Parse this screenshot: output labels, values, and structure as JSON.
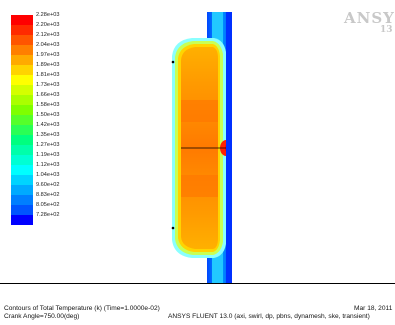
{
  "logo": {
    "brand": "ANSYS",
    "version": "13"
  },
  "legend": {
    "labels": [
      "2.28e+03",
      "2.20e+03",
      "2.12e+03",
      "2.04e+03",
      "1.97e+03",
      "1.89e+03",
      "1.81e+03",
      "1.73e+03",
      "1.66e+03",
      "1.58e+03",
      "1.50e+03",
      "1.42e+03",
      "1.35e+03",
      "1.27e+03",
      "1.19e+03",
      "1.12e+03",
      "1.04e+03",
      "9.60e+02",
      "8.83e+02",
      "8.05e+02",
      "7.28e+02"
    ],
    "colors": [
      "#ff0000",
      "#ff2a00",
      "#ff5500",
      "#ff7f00",
      "#ffaa00",
      "#ffd400",
      "#ffff00",
      "#d4ff00",
      "#aaff00",
      "#7fff00",
      "#55ff2a",
      "#2aff55",
      "#00ff7f",
      "#00ffaa",
      "#00ffd4",
      "#00ffff",
      "#00d4ff",
      "#00aaff",
      "#007fff",
      "#0055ff",
      "#0000ff"
    ]
  },
  "footer": {
    "title": "Contours of Total Temperature (k)  (Time=1.0000e-02)",
    "crank": "Crank Angle=750.00(deg)",
    "date": "Mar 18, 2011",
    "solver": "ANSYS FLUENT 13.0 (axi, swirl, dp, pbns, dynamesh, ske, transient)"
  }
}
